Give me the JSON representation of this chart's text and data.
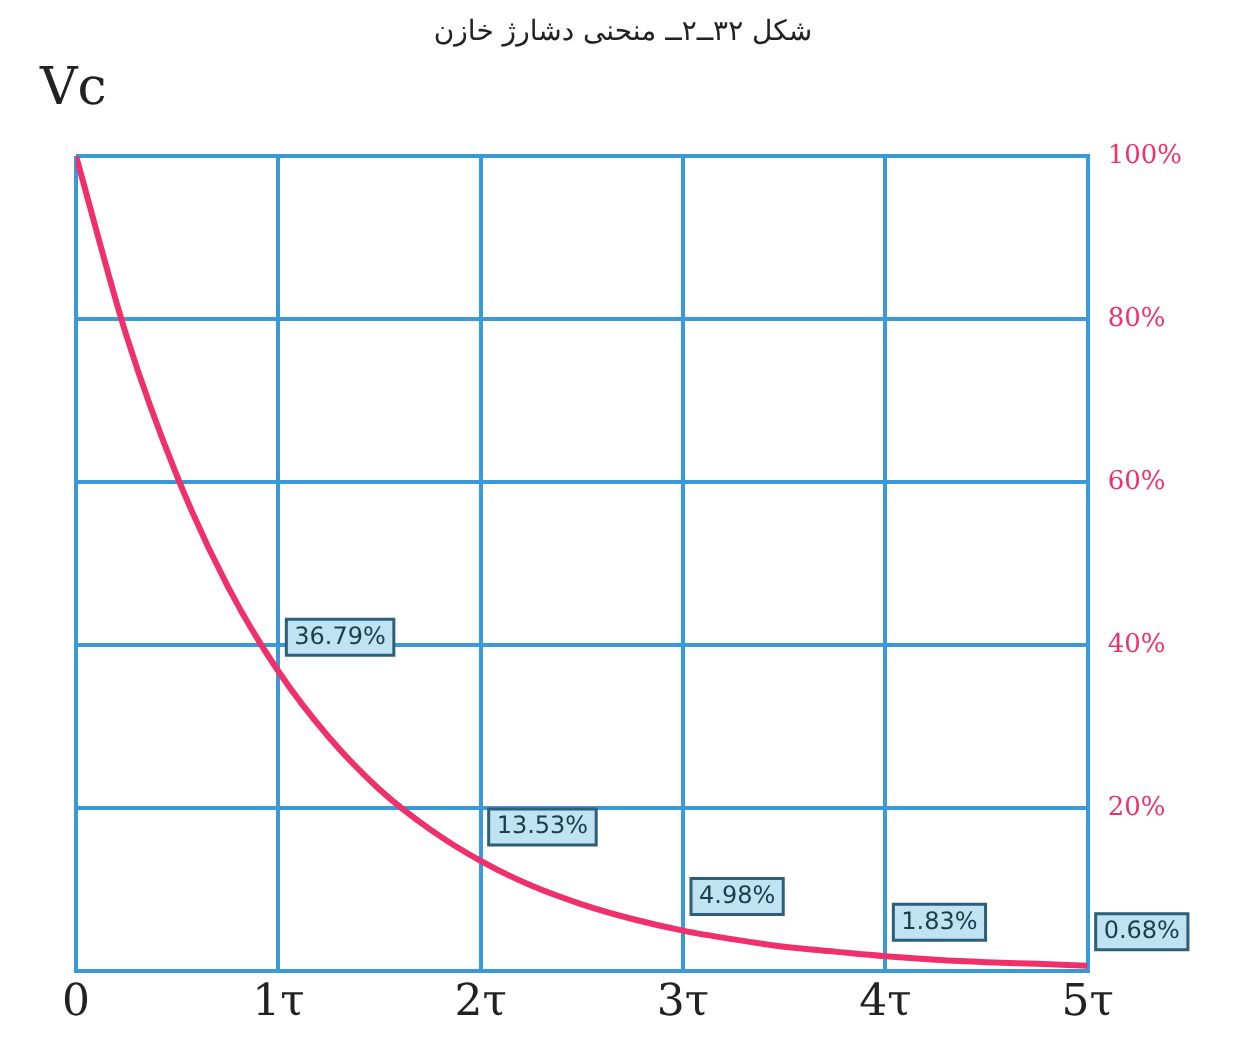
{
  "chart_data": {
    "type": "line",
    "title": "شکل ۳۲ــ۲ــ منحنی دشارژ خازن",
    "ylabel": "Vc",
    "x": [
      0,
      0.25,
      0.5,
      0.75,
      1,
      1.25,
      1.5,
      1.75,
      2,
      2.25,
      2.5,
      2.75,
      3,
      3.25,
      3.5,
      3.75,
      4,
      4.25,
      4.5,
      4.75,
      5
    ],
    "series": [
      {
        "color": "#f0306a",
        "values": [
          100,
          77.9,
          60.7,
          47.2,
          36.79,
          28.7,
          22.3,
          17.4,
          13.53,
          10.5,
          8.2,
          6.4,
          4.98,
          3.9,
          3.0,
          2.4,
          1.83,
          1.4,
          1.1,
          0.9,
          0.68
        ],
        "value_labels": [
          null,
          null,
          null,
          null,
          "36.79%",
          null,
          null,
          null,
          "13.53%",
          null,
          null,
          null,
          "4.98%",
          null,
          null,
          null,
          "1.83%",
          null,
          null,
          null,
          "0.68%"
        ]
      }
    ],
    "xlim": [
      0,
      5
    ],
    "xticks": [
      0,
      {
        "value": 1,
        "label": "1τ"
      },
      {
        "value": 2,
        "label": "2τ"
      },
      {
        "value": 3,
        "label": "3τ"
      },
      {
        "value": 4,
        "label": "4τ"
      },
      {
        "value": 5,
        "label": "5τ"
      }
    ],
    "ylim": [
      0,
      100
    ],
    "yticks": [
      {
        "value": 0,
        "label": null
      },
      {
        "value": 20,
        "label": "20%"
      },
      {
        "value": 40,
        "label": "40%"
      },
      {
        "value": 60,
        "label": "60%"
      },
      {
        "value": 80,
        "label": "80%"
      },
      {
        "value": 100,
        "label": "100%"
      }
    ],
    "grid": true,
    "legend": false,
    "marker": "none",
    "line_style": "solid"
  }
}
